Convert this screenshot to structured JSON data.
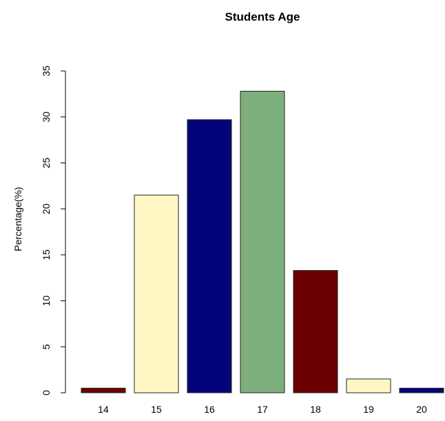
{
  "chart_data": {
    "type": "bar",
    "title": "Students Age",
    "xlabel": "",
    "ylabel": "Percentage(%)",
    "categories": [
      "14",
      "15",
      "16",
      "17",
      "18",
      "19",
      "20"
    ],
    "values": [
      0.5,
      21.5,
      29.7,
      32.8,
      13.3,
      1.5,
      0.5
    ],
    "colors": [
      "#6b0000",
      "#fff8c4",
      "#04047a",
      "#7daf7d",
      "#6b0000",
      "#fff8c4",
      "#04047a"
    ],
    "ylim": [
      0,
      35
    ],
    "yticks": [
      0,
      5,
      10,
      15,
      20,
      25,
      30,
      35
    ],
    "grid": false,
    "legend": "none"
  }
}
